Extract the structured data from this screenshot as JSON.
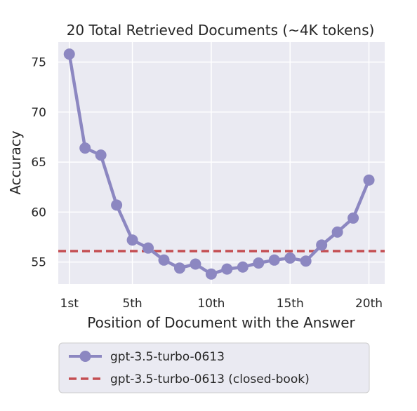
{
  "chart_data": {
    "type": "line",
    "title": "20 Total Retrieved Documents (~4K tokens)",
    "xlabel": "Position of Document with the Answer",
    "ylabel": "Accuracy",
    "xlim": [
      0.3,
      21.0
    ],
    "ylim": [
      52.8,
      77.0
    ],
    "x_ticks": [
      1,
      5,
      10,
      15,
      20
    ],
    "x_tick_labels": [
      "1st",
      "5th",
      "10th",
      "15th",
      "20th"
    ],
    "y_ticks": [
      55,
      60,
      65,
      70,
      75
    ],
    "y_tick_labels": [
      "55",
      "60",
      "65",
      "70",
      "75"
    ],
    "grid": true,
    "legend_position": "bottom-outside",
    "series": [
      {
        "name": "gpt-3.5-turbo-0613",
        "style": "line-with-markers",
        "color": "#8c87c1",
        "x": [
          1,
          2,
          3,
          4,
          5,
          6,
          7,
          8,
          9,
          10,
          11,
          12,
          13,
          14,
          15,
          16,
          17,
          18,
          19,
          20
        ],
        "y": [
          75.8,
          66.4,
          65.7,
          60.7,
          57.2,
          56.4,
          55.2,
          54.4,
          54.8,
          53.8,
          54.3,
          54.5,
          54.9,
          55.2,
          55.4,
          55.1,
          56.7,
          58.0,
          59.4,
          63.2
        ]
      },
      {
        "name": "gpt-3.5-turbo-0613 (closed-book)",
        "style": "dashed-horizontal",
        "color": "#c44e52",
        "y": 56.1
      }
    ]
  },
  "colors": {
    "plot_background": "#eaeaf2",
    "grid": "#ffffff",
    "text": "#262626"
  }
}
